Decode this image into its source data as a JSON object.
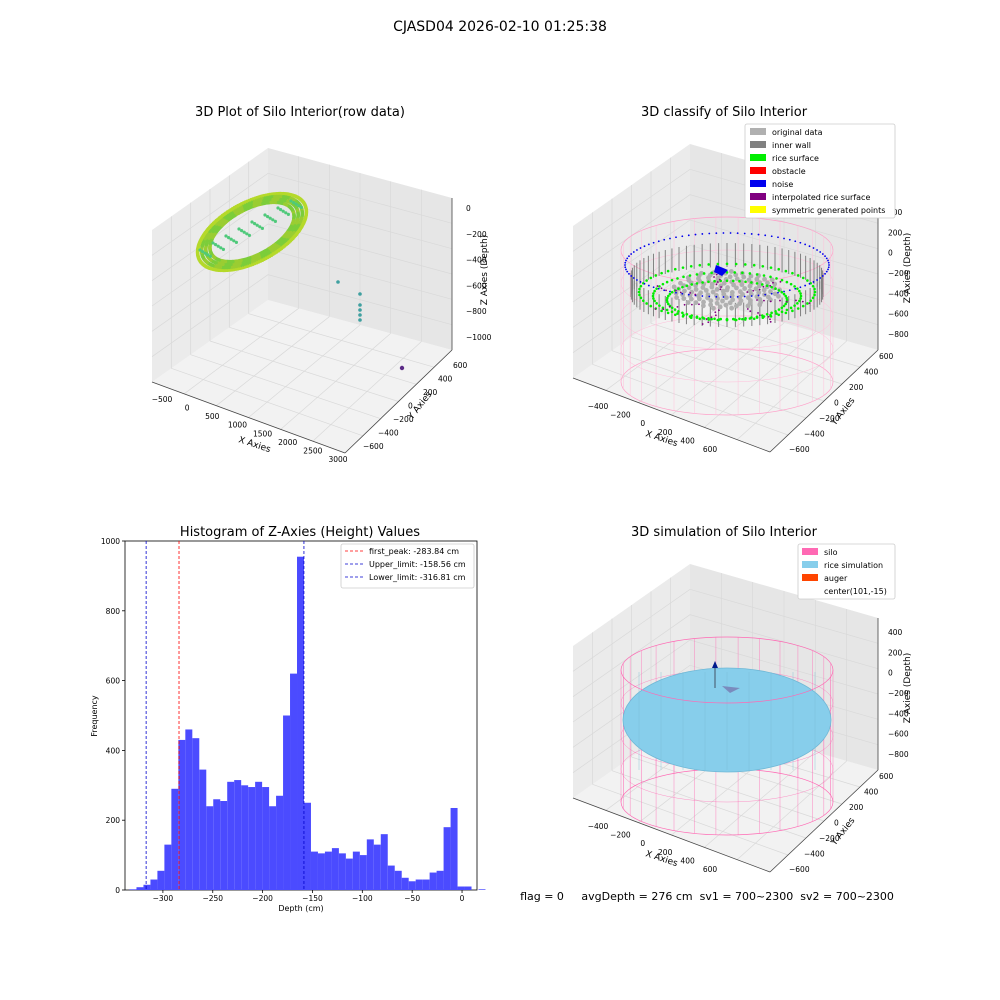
{
  "figure": {
    "suptitle": "CJASD04 2026-02-10 01:25:38",
    "status_line": "flag = 0     avgDepth = 276 cm  sv1 = 700~2300  sv2 = 700~2300"
  },
  "colors": {
    "pane": "#f2f2f2",
    "grid": "#d9d9d9",
    "hist_bar": "#4b4bff",
    "first_peak": "#ff0000",
    "limits": "#0000cc",
    "silo": "#ff69b4",
    "rice_simulation": "#87ceeb",
    "auger": "#ff4500",
    "original": "#b0b0b0",
    "inner_wall": "#808080",
    "rice_surface": "#00ee00",
    "obstacle": "#ff0000",
    "noise": "#0000ee",
    "interpolated": "#800080",
    "symmetric": "#ffff00"
  },
  "chart_data": [
    {
      "type": "scatter",
      "subtype": "3d",
      "title": "3D Plot of Silo Interior(row data)",
      "xlabel": "X Axies",
      "ylabel": "Y Axies",
      "zlabel": "Z Axies (Depth)",
      "x_ticks": [
        "−500",
        "0",
        "500",
        "1000",
        "1500",
        "2000",
        "2500",
        "3000"
      ],
      "y_ticks": [
        "600",
        "400",
        "200",
        "0",
        "−200",
        "−400",
        "−600"
      ],
      "z_ticks": [
        "0",
        "−200",
        "−400",
        "−600",
        "−800",
        "−1000"
      ],
      "xlim": [
        -600,
        3000
      ],
      "ylim": [
        -700,
        700
      ],
      "zlim": [
        -1050,
        50
      ],
      "grid": true
    },
    {
      "type": "scatter",
      "subtype": "3d",
      "title": "3D classify of Silo Interior",
      "xlabel": "X Axies",
      "ylabel": "Y Axies",
      "zlabel": "Z Axies (Depth)",
      "x_ticks": [
        "−400",
        "−200",
        "0",
        "200",
        "400",
        "600"
      ],
      "y_ticks": [
        "600",
        "400",
        "200",
        "0",
        "−200",
        "−400",
        "−600"
      ],
      "z_ticks": [
        "400",
        "200",
        "0",
        "−200",
        "−400",
        "−600",
        "−800"
      ],
      "legend": [
        "original data",
        "inner wall",
        "rice surface",
        "obstacle",
        "noise",
        "interpolated rice surface",
        "symmetric generated points"
      ],
      "legend_placement": "top-right",
      "grid": true
    },
    {
      "type": "bar",
      "subtype": "histogram",
      "title": "Histogram of Z-Axies (Height) Values",
      "xlabel": "Depth (cm)",
      "ylabel": "Frequency",
      "xlim": [
        -338,
        15
      ],
      "ylim": [
        0,
        1000
      ],
      "x_ticks": [
        -300,
        -250,
        -200,
        -150,
        -100,
        -50,
        0
      ],
      "x_tick_labels": [
        "−300",
        "−250",
        "−200",
        "−150",
        "−100",
        "−50",
        "0"
      ],
      "y_ticks": [
        0,
        200,
        400,
        600,
        800,
        1000
      ],
      "bin_start": -333.5,
      "bin_width": 7,
      "values": [
        2,
        8,
        15,
        30,
        55,
        130,
        290,
        430,
        460,
        435,
        345,
        240,
        260,
        255,
        310,
        315,
        300,
        295,
        310,
        295,
        240,
        270,
        500,
        620,
        955,
        250,
        110,
        105,
        110,
        120,
        105,
        90,
        110,
        100,
        145,
        130,
        160,
        70,
        55,
        35,
        25,
        30,
        30,
        50,
        55,
        180,
        235,
        10,
        10,
        0,
        2
      ],
      "lines": [
        {
          "name": "first_peak: -283.84 cm",
          "x": -283.84,
          "style": "dashed",
          "color": "red"
        },
        {
          "name": "Upper_limit: -158.56 cm",
          "x": -158.56,
          "style": "dashed",
          "color": "blue"
        },
        {
          "name": "Lower_limit: -316.81 cm",
          "x": -316.81,
          "style": "dashed",
          "color": "blue"
        }
      ],
      "legend_placement": "top-right"
    },
    {
      "type": "scatter",
      "subtype": "3d",
      "title": "3D simulation of Silo Interior",
      "xlabel": "X Axies",
      "ylabel": "Y Axies",
      "zlabel": "Z Axies (Depth)",
      "x_ticks": [
        "−400",
        "−200",
        "0",
        "200",
        "400",
        "600"
      ],
      "y_ticks": [
        "600",
        "400",
        "200",
        "0",
        "−200",
        "−400",
        "−600"
      ],
      "z_ticks": [
        "400",
        "200",
        "0",
        "−200",
        "−400",
        "−600",
        "−800"
      ],
      "legend": [
        "silo",
        "rice simulation",
        "auger",
        "center(101,-15)"
      ],
      "legend_placement": "top-right",
      "grid": true
    }
  ]
}
